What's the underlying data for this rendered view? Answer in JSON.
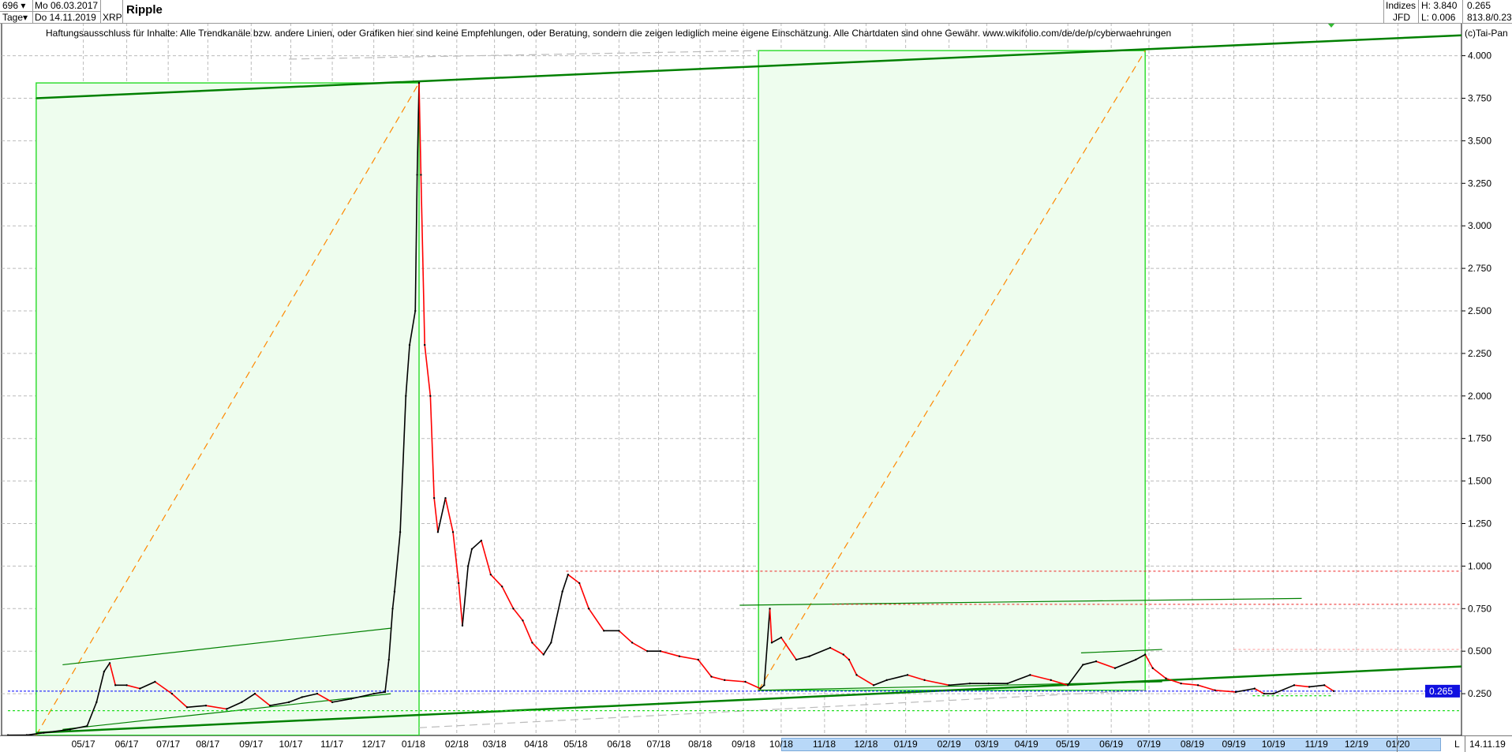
{
  "header": {
    "bar_count": "696",
    "period": "Tage",
    "start_date": "Mo 06.03.2017",
    "end_date": "Do 14.11.2019",
    "symbol": "XRP",
    "title": "Ripple",
    "market": "Indizes",
    "source": "JFD",
    "high": "H: 3.840",
    "low": "L: 0.006",
    "last": "0.265",
    "extra": "813.8/0.23"
  },
  "disclaimer": "Haftungsausschluss für Inhalte: Alle Trendkanäle bzw. andere Linien, oder Grafiken hier sind keine Empfehlungen, oder Beratung, sondern die zeigen lediglich meine eigene Einschätzung. Alle Chartdaten sind ohne Gewähr.  www.wikifolio.com/de/de/p/cyberwaehrungen",
  "copyright": "(c)Tai-Pan",
  "footer": {
    "mode": "L",
    "date": "14.11.19"
  },
  "colors": {
    "up": "#000000",
    "down": "#ff0000",
    "box_fill": "#eefdee",
    "box_border": "#33dd33",
    "trend": "#008000",
    "fib": "#ff8800",
    "price_marker": "#0000ff",
    "grid": "#bbbbbb",
    "range_bar": "#b8d8f8"
  },
  "chart_data": {
    "type": "line",
    "title": "Ripple",
    "xlabel": "",
    "ylabel": "",
    "xlim": [
      "2017-03-06",
      "2020-02-18"
    ],
    "ylim": [
      0,
      4.1
    ],
    "grid": true,
    "x_axis": "weekday bars",
    "x_ticks": [
      "05/17",
      "06/17",
      "07/17",
      "08/17",
      "09/17",
      "10/17",
      "11/17",
      "12/17",
      "01/18",
      "02/18",
      "03/18",
      "04/18",
      "05/18",
      "06/18",
      "07/18",
      "08/18",
      "09/18",
      "10/18",
      "11/18",
      "12/18",
      "01/19",
      "02/19",
      "03/19",
      "04/19",
      "05/19",
      "06/19",
      "07/19",
      "08/19",
      "09/19",
      "10/19",
      "11/19",
      "12/19",
      "01/20"
    ],
    "y_ticks": [
      "4.000",
      "3.750",
      "3.500",
      "3.250",
      "3.000",
      "2.750",
      "2.500",
      "2.250",
      "2.000",
      "1.750",
      "1.500",
      "1.250",
      "1.000",
      "0.750",
      "0.500",
      "0.250"
    ],
    "last_price": 0.265,
    "last_price_label": "0.265",
    "series": [
      {
        "points": [
          [
            "2017-03-06",
            0.006
          ],
          [
            "2017-03-20",
            0.007
          ],
          [
            "2017-03-31",
            0.02
          ],
          [
            "2017-04-20",
            0.04
          ],
          [
            "2017-05-03",
            0.06
          ],
          [
            "2017-05-10",
            0.2
          ],
          [
            "2017-05-16",
            0.38
          ],
          [
            "2017-05-19",
            0.43
          ],
          [
            "2017-05-24",
            0.3
          ],
          [
            "2017-06-01",
            0.3
          ],
          [
            "2017-06-12",
            0.28
          ],
          [
            "2017-06-22",
            0.32
          ],
          [
            "2017-07-05",
            0.25
          ],
          [
            "2017-07-17",
            0.17
          ],
          [
            "2017-07-31",
            0.18
          ],
          [
            "2017-08-15",
            0.16
          ],
          [
            "2017-08-25",
            0.2
          ],
          [
            "2017-09-05",
            0.25
          ],
          [
            "2017-09-15",
            0.18
          ],
          [
            "2017-09-29",
            0.2
          ],
          [
            "2017-10-10",
            0.23
          ],
          [
            "2017-10-20",
            0.25
          ],
          [
            "2017-11-01",
            0.2
          ],
          [
            "2017-11-15",
            0.22
          ],
          [
            "2017-12-01",
            0.25
          ],
          [
            "2017-12-11",
            0.26
          ],
          [
            "2017-12-13",
            0.45
          ],
          [
            "2017-12-15",
            0.75
          ],
          [
            "2017-12-18",
            0.85
          ],
          [
            "2017-12-21",
            1.2
          ],
          [
            "2017-12-26",
            2.0
          ],
          [
            "2017-12-28",
            2.3
          ],
          [
            "2018-01-02",
            2.5
          ],
          [
            "2018-01-03",
            3.3
          ],
          [
            "2018-01-04",
            3.84
          ],
          [
            "2018-01-05",
            3.3
          ],
          [
            "2018-01-09",
            2.3
          ],
          [
            "2018-01-12",
            2.0
          ],
          [
            "2018-01-16",
            1.4
          ],
          [
            "2018-01-18",
            1.2
          ],
          [
            "2018-01-24",
            1.4
          ],
          [
            "2018-01-30",
            1.2
          ],
          [
            "2018-02-02",
            0.9
          ],
          [
            "2018-02-06",
            0.65
          ],
          [
            "2018-02-09",
            1.0
          ],
          [
            "2018-02-13",
            1.1
          ],
          [
            "2018-02-20",
            1.15
          ],
          [
            "2018-02-27",
            0.95
          ],
          [
            "2018-03-07",
            0.88
          ],
          [
            "2018-03-15",
            0.75
          ],
          [
            "2018-03-22",
            0.68
          ],
          [
            "2018-03-29",
            0.55
          ],
          [
            "2018-04-06",
            0.48
          ],
          [
            "2018-04-12",
            0.55
          ],
          [
            "2018-04-20",
            0.85
          ],
          [
            "2018-04-25",
            0.95
          ],
          [
            "2018-05-03",
            0.9
          ],
          [
            "2018-05-10",
            0.75
          ],
          [
            "2018-05-22",
            0.62
          ],
          [
            "2018-06-01",
            0.62
          ],
          [
            "2018-06-12",
            0.55
          ],
          [
            "2018-06-22",
            0.5
          ],
          [
            "2018-07-03",
            0.5
          ],
          [
            "2018-07-17",
            0.47
          ],
          [
            "2018-07-31",
            0.45
          ],
          [
            "2018-08-09",
            0.35
          ],
          [
            "2018-08-20",
            0.33
          ],
          [
            "2018-09-04",
            0.32
          ],
          [
            "2018-09-14",
            0.28
          ],
          [
            "2018-09-18",
            0.3
          ],
          [
            "2018-09-21",
            0.75
          ],
          [
            "2018-09-24",
            0.55
          ],
          [
            "2018-10-01",
            0.58
          ],
          [
            "2018-10-11",
            0.45
          ],
          [
            "2018-10-22",
            0.47
          ],
          [
            "2018-11-06",
            0.52
          ],
          [
            "2018-11-15",
            0.48
          ],
          [
            "2018-11-20",
            0.45
          ],
          [
            "2018-11-26",
            0.36
          ],
          [
            "2018-12-07",
            0.3
          ],
          [
            "2018-12-18",
            0.33
          ],
          [
            "2019-01-02",
            0.36
          ],
          [
            "2019-01-15",
            0.33
          ],
          [
            "2019-02-01",
            0.3
          ],
          [
            "2019-02-18",
            0.31
          ],
          [
            "2019-03-04",
            0.31
          ],
          [
            "2019-03-18",
            0.31
          ],
          [
            "2019-04-03",
            0.36
          ],
          [
            "2019-04-18",
            0.33
          ],
          [
            "2019-05-01",
            0.3
          ],
          [
            "2019-05-13",
            0.42
          ],
          [
            "2019-05-22",
            0.44
          ],
          [
            "2019-06-05",
            0.4
          ],
          [
            "2019-06-20",
            0.45
          ],
          [
            "2019-06-27",
            0.48
          ],
          [
            "2019-07-03",
            0.4
          ],
          [
            "2019-07-12",
            0.34
          ],
          [
            "2019-07-24",
            0.31
          ],
          [
            "2019-08-06",
            0.3
          ],
          [
            "2019-08-19",
            0.27
          ],
          [
            "2019-09-03",
            0.26
          ],
          [
            "2019-09-17",
            0.28
          ],
          [
            "2019-09-24",
            0.25
          ],
          [
            "2019-10-01",
            0.25
          ],
          [
            "2019-10-16",
            0.3
          ],
          [
            "2019-10-28",
            0.29
          ],
          [
            "2019-11-07",
            0.3
          ],
          [
            "2019-11-14",
            0.265
          ]
        ]
      }
    ],
    "drawings": [
      {
        "kind": "box",
        "from": [
          "2017-03-27",
          0.006
        ],
        "to": [
          "2018-01-04",
          3.84
        ]
      },
      {
        "kind": "box",
        "from": [
          "2018-09-13",
          0.27
        ],
        "to": [
          "2019-06-27",
          4.03
        ]
      },
      {
        "kind": "fib-diagonal",
        "from": [
          "2017-03-27",
          0.006
        ],
        "to": [
          "2018-01-04",
          3.84
        ]
      },
      {
        "kind": "fib-diagonal",
        "from": [
          "2018-09-13",
          0.27
        ],
        "to": [
          "2019-06-27",
          4.03
        ]
      },
      {
        "kind": "trend-thick",
        "from": [
          "2017-03-27",
          3.75
        ],
        "to": [
          "2020-02-18",
          4.12
        ]
      },
      {
        "kind": "trend-thick",
        "from": [
          "2017-03-27",
          0.02
        ],
        "to": [
          "2020-02-18",
          0.41
        ]
      },
      {
        "kind": "trend-thin",
        "from": [
          "2017-04-14",
          0.42
        ],
        "to": [
          "2017-12-14",
          0.635
        ]
      },
      {
        "kind": "trend-thin",
        "from": [
          "2017-04-14",
          0.04
        ],
        "to": [
          "2017-12-14",
          0.25
        ]
      },
      {
        "kind": "trend-thin",
        "from": [
          "2018-08-30",
          0.77
        ],
        "to": [
          "2019-10-22",
          0.81
        ]
      },
      {
        "kind": "trend-thin",
        "from": [
          "2019-05-10",
          0.49
        ],
        "to": [
          "2019-07-10",
          0.51
        ]
      },
      {
        "kind": "trend-thin",
        "from": [
          "2018-09-13",
          0.27
        ],
        "to": [
          "2019-07-10",
          0.32
        ]
      },
      {
        "kind": "gray-dashed",
        "from": [
          "2017-09-29",
          3.98
        ],
        "to": [
          "2018-09-13",
          4.03
        ]
      },
      {
        "kind": "gray-dashed",
        "from": [
          "2018-01-04",
          0.05
        ],
        "to": [
          "2019-06-27",
          0.27
        ]
      },
      {
        "kind": "red-dotted",
        "from": [
          "2018-04-24",
          0.97
        ],
        "to": [
          "2020-02-18",
          0.97
        ]
      },
      {
        "kind": "red-dotted",
        "from": [
          "2018-11-07",
          0.775
        ],
        "to": [
          "2020-02-18",
          0.775
        ]
      },
      {
        "kind": "pink-dotted",
        "from": [
          "2019-09-02",
          0.51
        ],
        "to": [
          "2020-02-18",
          0.51
        ]
      },
      {
        "kind": "green-dotted",
        "from": [
          "2017-03-06",
          0.15
        ],
        "to": [
          "2020-02-18",
          0.15
        ]
      },
      {
        "kind": "green-dotted",
        "from": [
          "2019-09-16",
          0.238
        ],
        "to": [
          "2019-11-13",
          0.238
        ]
      },
      {
        "kind": "blue-dotted",
        "from": [
          "2017-03-06",
          0.265
        ],
        "to": [
          "2020-02-18",
          0.265
        ]
      }
    ],
    "range_highlight": [
      "2018-10-01",
      "2020-01-31"
    ]
  }
}
